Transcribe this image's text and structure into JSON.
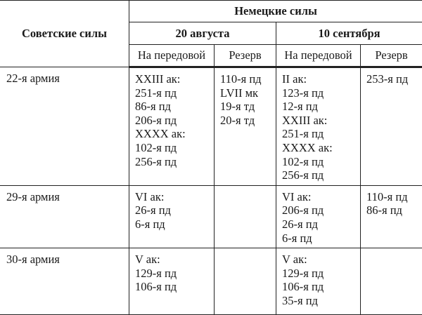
{
  "header": {
    "soviet": "Советские силы",
    "german": "Немецкие силы",
    "dates": [
      "20 августа",
      "10 сентября"
    ],
    "front": "На передовой",
    "reserve": "Резерв"
  },
  "rows": [
    {
      "army": "22-я армия",
      "aug_front": [
        "XXIII ак:",
        "251-я пд",
        "86-я пд",
        "206-я пд",
        "XXXX ак:",
        "102-я пд",
        "256-я пд"
      ],
      "aug_reserve": [
        "110-я пд",
        "LVII мк",
        "19-я тд",
        "20-я тд"
      ],
      "sep_front": [
        "II ак:",
        "123-я пд",
        "12-я пд",
        "XXIII ак:",
        "251-я пд",
        "XXXX ак:",
        "102-я пд",
        "256-я пд"
      ],
      "sep_reserve": [
        "253-я пд"
      ]
    },
    {
      "army": "29-я армия",
      "aug_front": [
        "VI ак:",
        "26-я пд",
        "6-я пд"
      ],
      "aug_reserve": [],
      "sep_front": [
        "VI ак:",
        "206-я пд",
        "26-я пд",
        "6-я пд"
      ],
      "sep_reserve": [
        "110-я пд",
        "86-я пд"
      ]
    },
    {
      "army": "30-я армия",
      "aug_front": [
        "V ак:",
        "129-я пд",
        "106-я пд"
      ],
      "aug_reserve": [],
      "sep_front": [
        "V ак:",
        "129-я пд",
        "106-я пд",
        "35-я пд"
      ],
      "sep_reserve": []
    }
  ]
}
